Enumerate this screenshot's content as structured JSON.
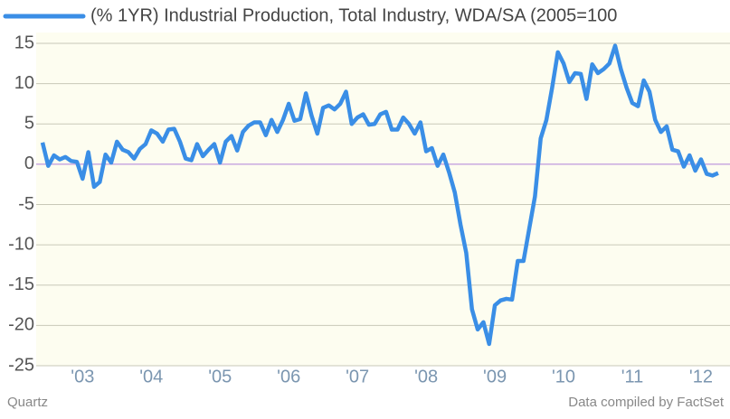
{
  "chart_data": {
    "type": "line",
    "title": "(% 1YR) Industrial Production, Total Industry, WDA/SA (2005=100",
    "source": "Data compiled by FactSet",
    "brand": "Quartz",
    "categories": [
      null,
      null,
      null,
      null,
      null,
      null,
      null,
      "'03",
      null,
      null,
      null,
      null,
      null,
      null,
      null,
      null,
      null,
      null,
      null,
      "'04",
      null,
      null,
      null,
      null,
      null,
      null,
      null,
      null,
      null,
      null,
      null,
      "'05",
      null,
      null,
      null,
      null,
      null,
      null,
      null,
      null,
      null,
      null,
      null,
      "'06",
      null,
      null,
      null,
      null,
      null,
      null,
      null,
      null,
      null,
      null,
      null,
      "'07",
      null,
      null,
      null,
      null,
      null,
      null,
      null,
      null,
      null,
      null,
      null,
      "'08",
      null,
      null,
      null,
      null,
      null,
      null,
      null,
      null,
      null,
      null,
      null,
      "'09",
      null,
      null,
      null,
      null,
      null,
      null,
      null,
      null,
      null,
      null,
      null,
      "'10",
      null,
      null,
      null,
      null,
      null,
      null,
      null,
      null,
      null,
      null,
      null,
      "'11",
      null,
      null,
      null,
      null,
      null,
      null,
      null,
      null,
      null,
      null,
      null,
      "'12",
      null,
      null,
      null
    ],
    "series": [
      {
        "name": "(% 1YR) Industrial Production, Total Industry, WDA/SA (2005=100",
        "color": "#3a8ee6",
        "values": [
          2.7,
          -0.2,
          1.1,
          0.6,
          0.9,
          0.4,
          0.3,
          -1.8,
          1.5,
          -2.8,
          -2.2,
          1.2,
          0.2,
          2.8,
          1.8,
          1.5,
          0.7,
          1.9,
          2.5,
          4.2,
          3.8,
          2.8,
          4.3,
          4.4,
          2.8,
          0.7,
          0.5,
          2.5,
          1.0,
          1.8,
          2.5,
          0.2,
          2.8,
          3.5,
          1.7,
          4.0,
          4.8,
          5.2,
          5.2,
          3.6,
          5.5,
          4.0,
          5.5,
          7.5,
          5.4,
          5.6,
          8.8,
          6.0,
          3.8,
          7.0,
          7.3,
          6.8,
          7.5,
          9.0,
          5.0,
          5.8,
          6.2,
          4.9,
          5.0,
          6.2,
          6.5,
          4.3,
          4.3,
          5.8,
          5.0,
          3.8,
          5.2,
          1.6,
          2.0,
          -0.2,
          1.2,
          -1.0,
          -3.5,
          -7.5,
          -11,
          -18,
          -20.5,
          -19.6,
          -22.3,
          -17.5,
          -16.9,
          -16.7,
          -16.8,
          -12,
          -12,
          -8,
          -4,
          3.2,
          5.5,
          9.5,
          13.9,
          12.5,
          10.2,
          11.3,
          11.2,
          8.1,
          12.4,
          11.3,
          11.8,
          12.5,
          14.7,
          11.8,
          9.5,
          7.6,
          7.2,
          10.4,
          9.0,
          5.5,
          4.0,
          4.7,
          1.8,
          1.6,
          -0.3,
          1.1,
          -0.8,
          0.6,
          -1.2,
          -1.4,
          -1.1
        ]
      }
    ],
    "ylim": [
      -25,
      15
    ],
    "yticks": [
      15,
      10,
      5,
      0,
      -5,
      -10,
      -15,
      -20,
      -25
    ],
    "grid": true,
    "grid_color": "#c8c8b8",
    "zero_line_color": "#b07fd8",
    "plot_background": "#fdfdf0"
  }
}
